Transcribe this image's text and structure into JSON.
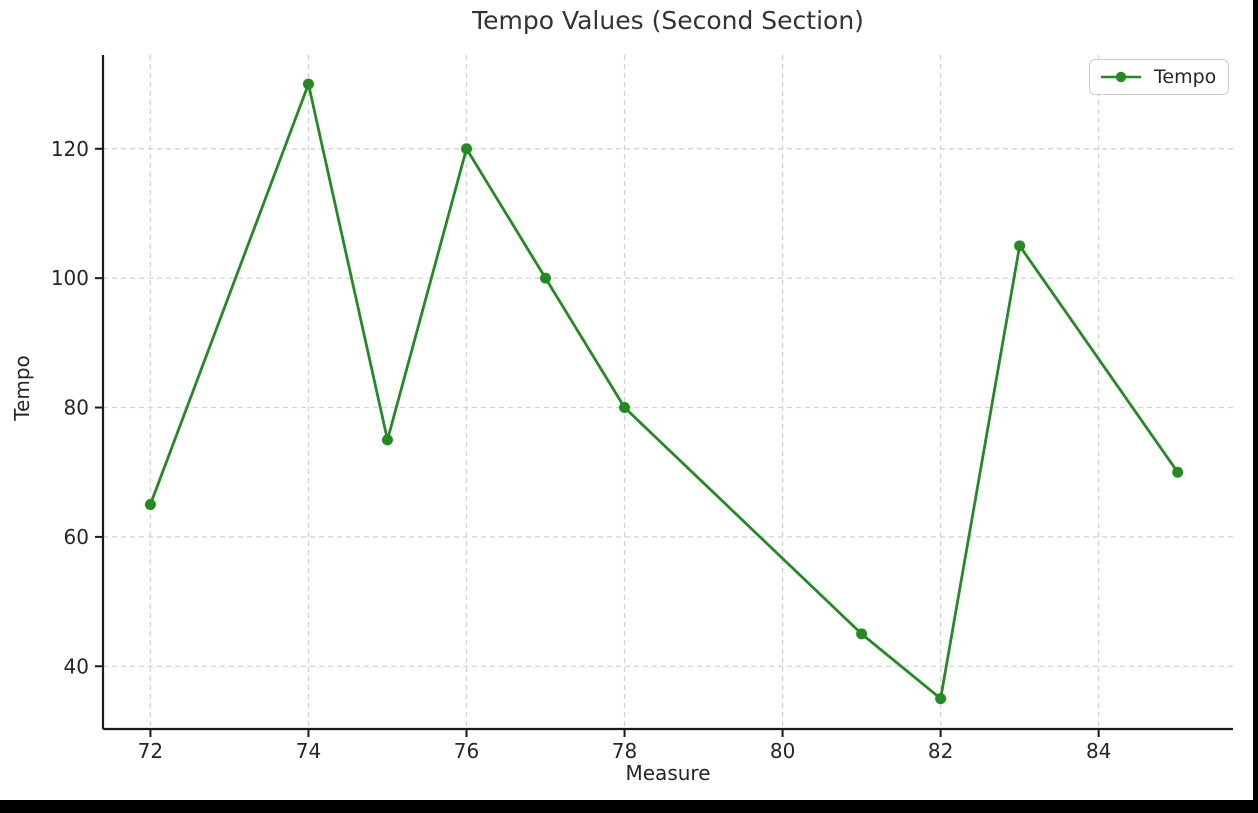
{
  "figure": {
    "title": "Tempo Values (Second Section)"
  },
  "legend": {
    "entries": [
      {
        "label": "Tempo",
        "color": "#228B22"
      }
    ]
  },
  "chart_data": {
    "type": "line",
    "title": "Tempo Values (Second Section)",
    "xlabel": "Measure",
    "ylabel": "Tempo",
    "series": [
      {
        "name": "Tempo",
        "color": "#228B22",
        "marker": "circle",
        "x": [
          72,
          74,
          75,
          76,
          77,
          78,
          81,
          82,
          83,
          85
        ],
        "y": [
          65,
          130,
          75,
          120,
          100,
          80,
          45,
          35,
          105,
          70
        ]
      }
    ],
    "xticks": [
      72,
      74,
      76,
      78,
      80,
      82,
      84
    ],
    "yticks": [
      40,
      60,
      80,
      100,
      120
    ],
    "xlim": [
      71.4,
      85.7
    ],
    "ylim": [
      30.3,
      134.5
    ],
    "grid": true,
    "grid_linestyle": "dashed",
    "legend_position": "upper right",
    "colors": {
      "series": "#228B22",
      "grid": "#d3d3d3",
      "text": "#262626",
      "axis": "#1a1a1a"
    }
  }
}
